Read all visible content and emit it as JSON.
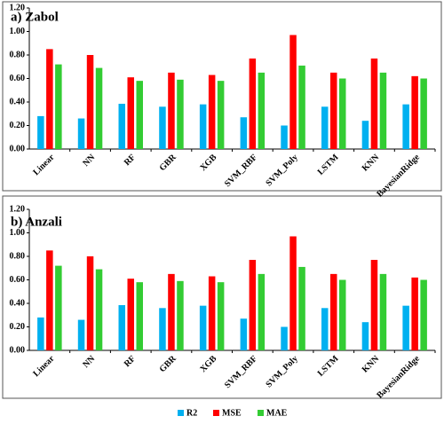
{
  "chart_data": [
    {
      "type": "bar",
      "title": "a) Zabol",
      "categories": [
        "Linear",
        "NN",
        "RF",
        "GBR",
        "XGB",
        "SVM_RBF",
        "SVM_Poly",
        "LSTM",
        "KNN",
        "BayesianRidge"
      ],
      "series": [
        {
          "color": "#00b0f0",
          "values": [
            0.28,
            0.26,
            0.385,
            0.36,
            0.38,
            0.27,
            0.2,
            0.36,
            0.24,
            0.38
          ]
        },
        {
          "color": "#ff0000",
          "values": [
            0.85,
            0.8,
            0.61,
            0.65,
            0.63,
            0.77,
            0.97,
            0.65,
            0.77,
            0.62
          ]
        },
        {
          "color": "#33cc33",
          "values": [
            0.72,
            0.69,
            0.58,
            0.59,
            0.58,
            0.65,
            0.71,
            0.6,
            0.65,
            0.6
          ]
        }
      ],
      "ylim": [
        0,
        1.2
      ],
      "yticks": [
        {
          "value": 0,
          "label": "0.00"
        },
        {
          "value": 0.2,
          "label": "0.20"
        },
        {
          "value": 0.4,
          "label": "0.40"
        },
        {
          "value": 0.6,
          "label": "0.60"
        },
        {
          "value": 0.8,
          "label": "0.80"
        },
        {
          "value": 1.0,
          "label": "1.00"
        },
        {
          "value": 1.2,
          "label": "1.20"
        }
      ]
    },
    {
      "type": "bar",
      "title": "b) Anzali",
      "categories": [
        "Linear",
        "NN",
        "RF",
        "GBR",
        "XGB",
        "SVM_RBF",
        "SVM_Poly",
        "LSTM",
        "KNN",
        "BayesianRidge"
      ],
      "series": [
        {
          "name": "R2",
          "color": "#00b0f0",
          "values": [
            0.28,
            0.26,
            0.385,
            0.36,
            0.38,
            0.27,
            0.2,
            0.36,
            0.24,
            0.38
          ]
        },
        {
          "name": "MSE",
          "color": "#ff0000",
          "values": [
            0.85,
            0.8,
            0.61,
            0.65,
            0.63,
            0.77,
            0.97,
            0.65,
            0.77,
            0.62
          ]
        },
        {
          "name": "MAE",
          "color": "#33cc33",
          "values": [
            0.72,
            0.69,
            0.58,
            0.59,
            0.58,
            0.65,
            0.71,
            0.6,
            0.65,
            0.6
          ]
        }
      ],
      "ylim": [
        0,
        1.2
      ],
      "yticks": [
        {
          "value": 0,
          "label": "0.00"
        },
        {
          "value": 0.2,
          "label": "0.20"
        },
        {
          "value": 0.4,
          "label": "0.40"
        },
        {
          "value": 0.6,
          "label": "0.60"
        },
        {
          "value": 0.8,
          "label": "0.80"
        },
        {
          "value": 1.0,
          "label": "1.00"
        },
        {
          "value": 1.2,
          "label": "1.20"
        }
      ]
    }
  ]
}
